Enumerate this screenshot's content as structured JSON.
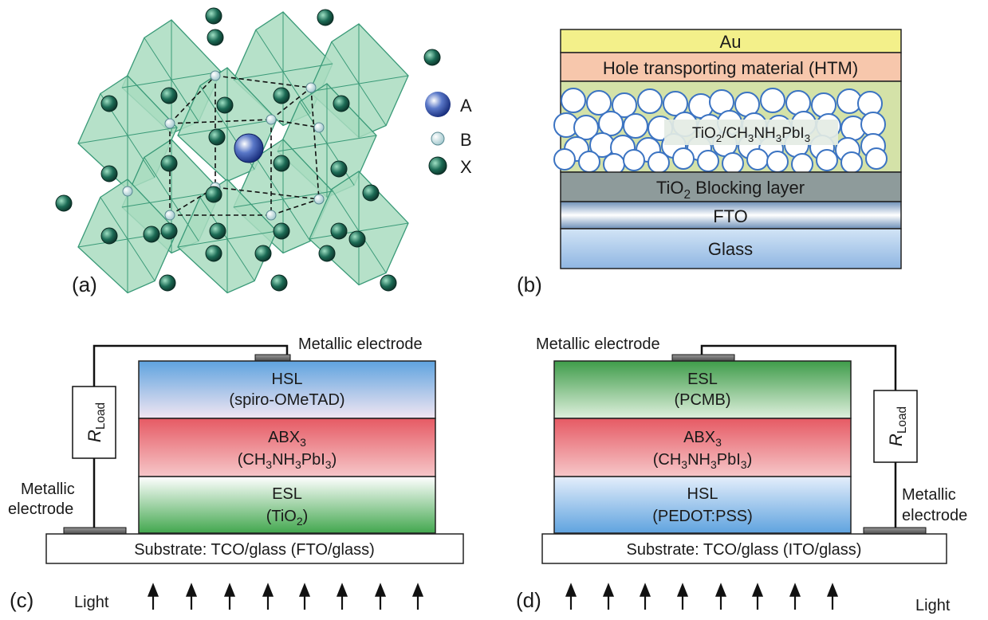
{
  "panel_a": {
    "label": "(a)",
    "legend": [
      {
        "key": "A",
        "symbol": "large-blue-sphere"
      },
      {
        "key": "B",
        "symbol": "small-light-sphere"
      },
      {
        "key": "X",
        "symbol": "dark-green-sphere"
      }
    ]
  },
  "panel_b": {
    "label": "(b)",
    "layers": {
      "au": "Au",
      "htm": "Hole transporting material (HTM)",
      "meso_main": "TiO",
      "meso_sub1": "2",
      "meso_mid": "/CH",
      "meso_sub2": "3",
      "meso_mid2": "NH",
      "meso_sub3": "3",
      "meso_end": "PbI",
      "meso_sub4": "3",
      "block_main": "TiO",
      "block_sub": "2",
      "block_end": " Blocking layer",
      "fto": "FTO",
      "glass": "Glass"
    },
    "colors": {
      "au": "#f3f08a",
      "htm": "#f7c7ac",
      "meso": "#d8e6b0",
      "block": "#8e9b9b",
      "fto": "#a8c4e2",
      "glass": "#bcd7f2"
    }
  },
  "panel_c": {
    "label": "(c)",
    "electrode_top": "Metallic electrode",
    "electrode_side_1": "Metallic",
    "electrode_side_2": "electrode",
    "load_r": "R",
    "load_sub": "Load",
    "hsl_1": "HSL",
    "hsl_2": "(spiro-OMeTAD)",
    "abx_main": "ABX",
    "abx_sub": "3",
    "abx_f1": "(CH",
    "abx_f1s": "3",
    "abx_f2": "NH",
    "abx_f2s": "3",
    "abx_f3": "PbI",
    "abx_f3s": "3",
    "abx_f4": ")",
    "esl_1": "ESL",
    "esl_2a": "(TiO",
    "esl_2s": "2",
    "esl_2b": ")",
    "substrate": "Substrate: TCO/glass (FTO/glass)",
    "light": "Light"
  },
  "panel_d": {
    "label": "(d)",
    "electrode_top": "Metallic electrode",
    "electrode_side_1": "Metallic",
    "electrode_side_2": "electrode",
    "load_r": "R",
    "load_sub": "Load",
    "esl_1": "ESL",
    "esl_2": "(PCMB)",
    "abx_main": "ABX",
    "abx_sub": "3",
    "abx_f1": "(CH",
    "abx_f1s": "3",
    "abx_f2": "NH",
    "abx_f2s": "3",
    "abx_f3": "PbI",
    "abx_f3s": "3",
    "abx_f4": ")",
    "hsl_1": "HSL",
    "hsl_2": "(PEDOT:PSS)",
    "substrate": "Substrate: TCO/glass (ITO/glass)",
    "light": "Light"
  }
}
